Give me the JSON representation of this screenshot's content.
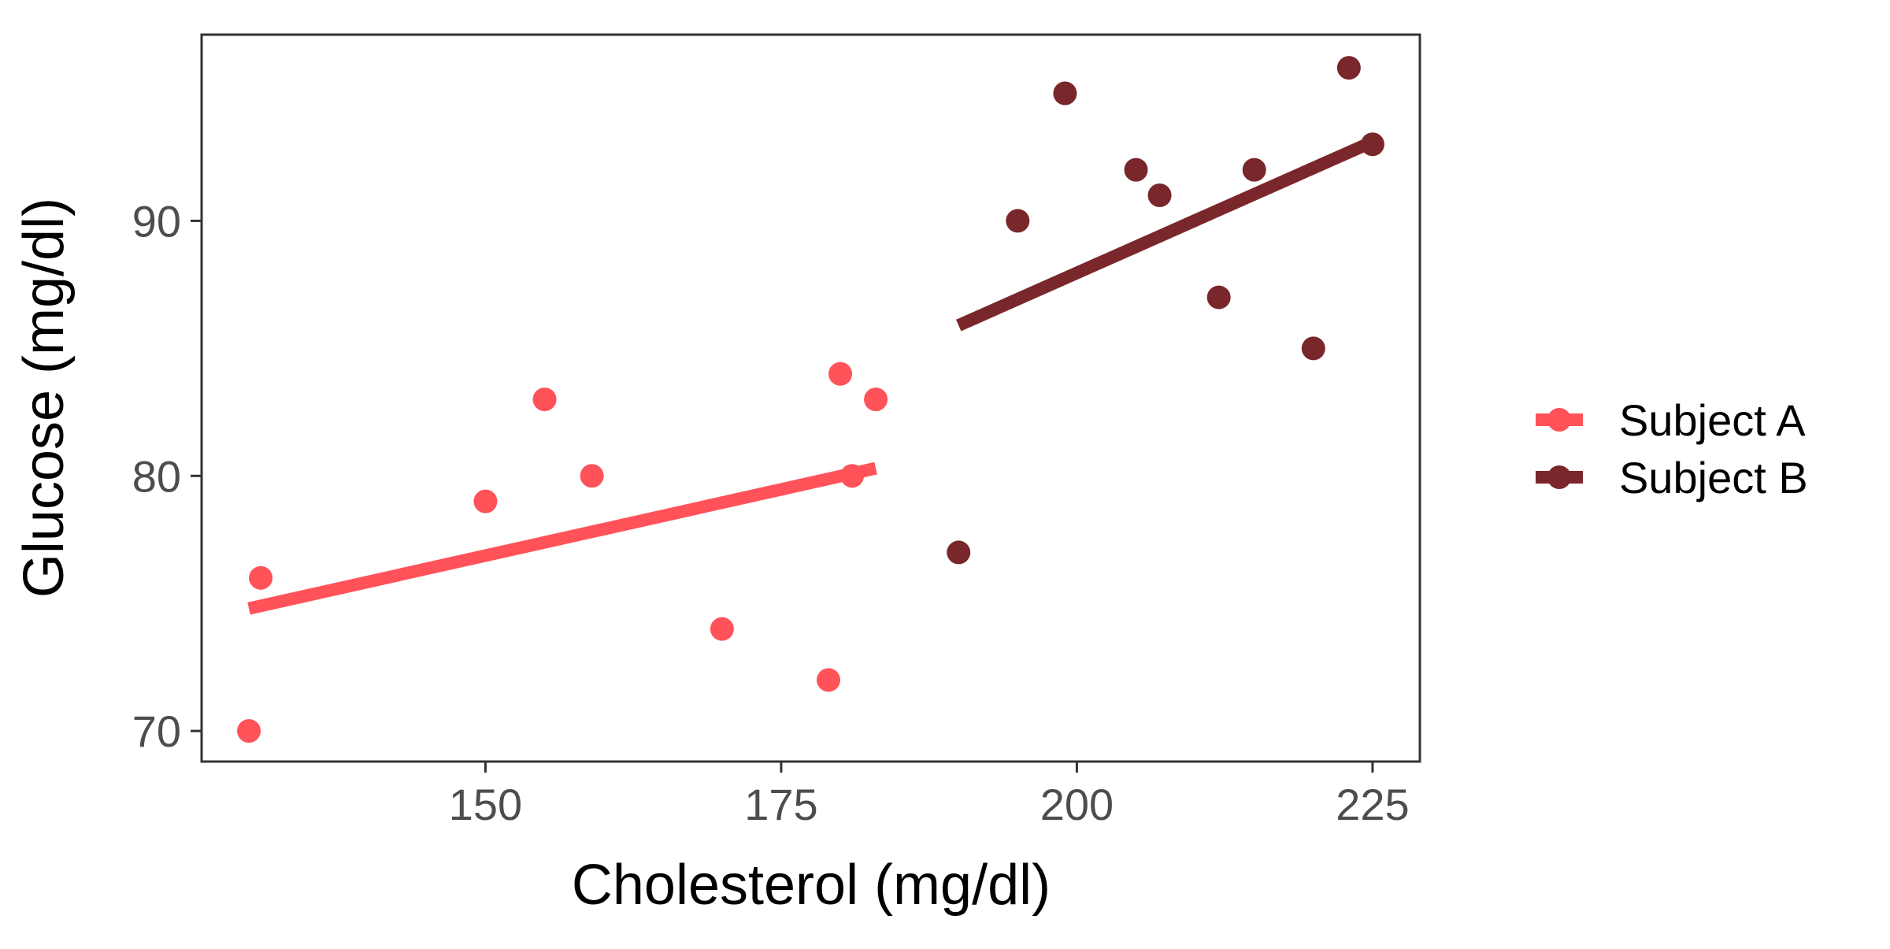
{
  "chart_data": {
    "type": "scatter",
    "title": "",
    "xlabel": "Cholesterol (mg/dl)",
    "ylabel": "Glucose (mg/dl)",
    "xlim": [
      126,
      229
    ],
    "ylim": [
      68.8,
      97.3
    ],
    "xticks": [
      150,
      175,
      200,
      225
    ],
    "yticks": [
      70,
      80,
      90
    ],
    "grid": false,
    "legend_position": "right",
    "series": [
      {
        "name": "Subject A",
        "color": "#FF5259",
        "points": [
          {
            "x": 130,
            "y": 70
          },
          {
            "x": 131,
            "y": 76
          },
          {
            "x": 150,
            "y": 79
          },
          {
            "x": 155,
            "y": 83
          },
          {
            "x": 159,
            "y": 80
          },
          {
            "x": 170,
            "y": 74
          },
          {
            "x": 179,
            "y": 72
          },
          {
            "x": 180,
            "y": 84
          },
          {
            "x": 181,
            "y": 80
          },
          {
            "x": 183,
            "y": 83
          }
        ],
        "fit_line": {
          "x": [
            130,
            183
          ],
          "y": [
            74.8,
            80.3
          ]
        }
      },
      {
        "name": "Subject B",
        "color": "#7A272B",
        "points": [
          {
            "x": 190,
            "y": 77
          },
          {
            "x": 195,
            "y": 90
          },
          {
            "x": 199,
            "y": 95
          },
          {
            "x": 205,
            "y": 92
          },
          {
            "x": 207,
            "y": 91
          },
          {
            "x": 212,
            "y": 87
          },
          {
            "x": 215,
            "y": 92
          },
          {
            "x": 220,
            "y": 85
          },
          {
            "x": 223,
            "y": 96
          },
          {
            "x": 225,
            "y": 93
          }
        ],
        "fit_line": {
          "x": [
            190,
            225
          ],
          "y": [
            85.9,
            93.1
          ]
        }
      }
    ]
  }
}
